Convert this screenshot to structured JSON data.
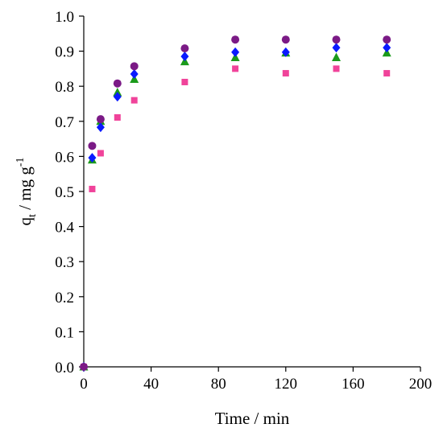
{
  "chart_data": {
    "type": "scatter",
    "title": "",
    "xlabel": "Time / min",
    "ylabel": {
      "base": "q",
      "sub": "t",
      "unit": " / mg g",
      "sup": "-1"
    },
    "xlim": [
      0,
      200
    ],
    "ylim": [
      0.0,
      1.0
    ],
    "x_ticks": [
      "0",
      "40",
      "80",
      "120",
      "160",
      "200"
    ],
    "y_ticks": [
      "0.0",
      "0.1",
      "0.2",
      "0.3",
      "0.4",
      "0.5",
      "0.6",
      "0.7",
      "0.8",
      "0.9",
      "1.0"
    ],
    "grid": false,
    "legend": "none",
    "series": [
      {
        "marker": "square",
        "color": "#f0439a",
        "x": [
          0,
          5,
          10,
          20,
          30,
          60,
          90,
          120,
          150,
          180
        ],
        "y": [
          0.0,
          0.507,
          0.609,
          0.711,
          0.76,
          0.812,
          0.85,
          0.837,
          0.85,
          0.837
        ]
      },
      {
        "marker": "triangle",
        "color": "#1a9a1a",
        "x": [
          0,
          5,
          10,
          20,
          30,
          60,
          90,
          120,
          150,
          180
        ],
        "y": [
          0.0,
          0.59,
          0.7,
          0.782,
          0.82,
          0.87,
          0.882,
          0.895,
          0.882,
          0.895
        ]
      },
      {
        "marker": "diamond",
        "color": "#0a1aff",
        "x": [
          0,
          5,
          10,
          20,
          30,
          60,
          90,
          120,
          150,
          180
        ],
        "y": [
          0.0,
          0.596,
          0.683,
          0.77,
          0.835,
          0.885,
          0.897,
          0.897,
          0.91,
          0.91
        ]
      },
      {
        "marker": "circle",
        "color": "#7b1a86",
        "x": [
          0,
          5,
          10,
          20,
          30,
          60,
          90,
          120,
          150,
          180
        ],
        "y": [
          0.0,
          0.63,
          0.706,
          0.808,
          0.857,
          0.908,
          0.933,
          0.933,
          0.933,
          0.933
        ]
      }
    ]
  }
}
